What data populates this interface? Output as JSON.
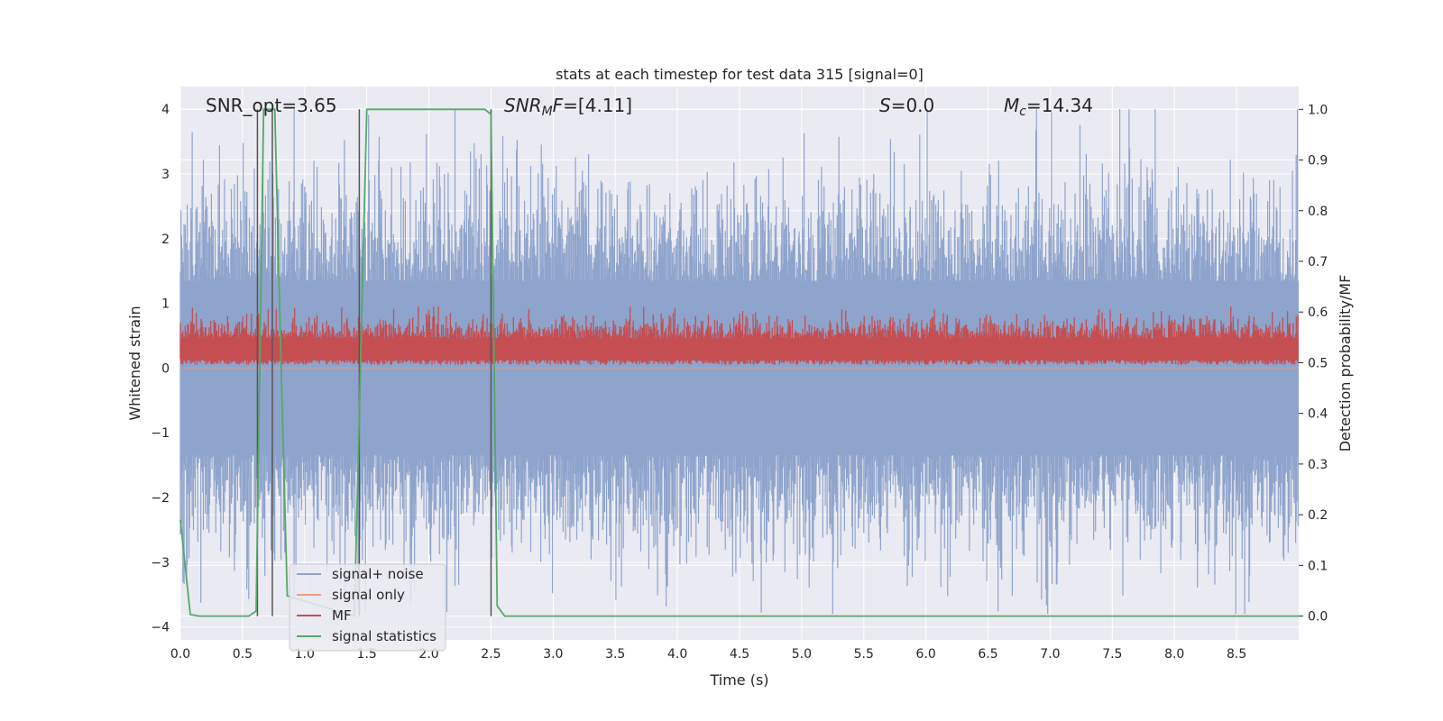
{
  "chart_data": {
    "type": "line",
    "title": "stats at each timestep for test data 315 [signal=0]",
    "xlabel": "Time (s)",
    "ylabel_left": "Whitened strain",
    "ylabel_right": "Detection probability/MF",
    "xlim": [
      0,
      9.0
    ],
    "ylim_left": [
      -4.2,
      4.35
    ],
    "ylim_right": [
      -0.047,
      1.045
    ],
    "xticks": [
      "0.0",
      "0.5",
      "1.0",
      "1.5",
      "2.0",
      "2.5",
      "3.0",
      "3.5",
      "4.0",
      "4.5",
      "5.0",
      "5.5",
      "6.0",
      "6.5",
      "7.0",
      "7.5",
      "8.0",
      "8.5"
    ],
    "yticks_left": [
      "4",
      "3",
      "2",
      "1",
      "0",
      "−1",
      "−2",
      "−3",
      "−4"
    ],
    "yticks_right": [
      "1.0",
      "0.9",
      "0.8",
      "0.7",
      "0.6",
      "0.5",
      "0.4",
      "0.3",
      "0.2",
      "0.1",
      "0.0"
    ],
    "grid": true,
    "legend_position": "lower-left",
    "annotations": {
      "snr_opt": "SNR_opt=3.65",
      "snr_mf_prefix": "SNR",
      "snr_mf_sub": "M",
      "snr_mf_mid": "F",
      "snr_mf_value": "=[4.11]",
      "s_label": "S",
      "s_value": "=0.0",
      "mc_label": "M",
      "mc_sub": "c",
      "mc_value": "=14.34"
    },
    "series": [
      {
        "name": "signal+ noise",
        "color": "#8fa4cc",
        "axis": "left",
        "approx_range": [
          -3.8,
          4.0
        ]
      },
      {
        "name": "signal only",
        "color": "#e8a07c",
        "axis": "left",
        "values": "≈0 throughout"
      },
      {
        "name": "MF",
        "color": "#c44e52",
        "axis": "left",
        "approx_range": [
          0.0,
          0.95
        ]
      },
      {
        "name": "signal statistics",
        "color": "#55a868",
        "axis": "right",
        "x": [
          0.0,
          0.08,
          0.15,
          0.55,
          0.61,
          0.67,
          0.72,
          0.76,
          0.81,
          0.86,
          1.4,
          1.45,
          1.5,
          2.45,
          2.5,
          2.55,
          2.61,
          9.0
        ],
        "y": [
          0.19,
          0.003,
          0.0,
          0.0,
          0.01,
          1.0,
          1.0,
          1.0,
          0.5,
          0.04,
          0.0,
          0.5,
          1.0,
          1.0,
          0.99,
          0.02,
          0.0,
          0.0
        ]
      }
    ],
    "vertical_markers_x": [
      0.62,
      0.74,
      1.44,
      2.5
    ]
  }
}
